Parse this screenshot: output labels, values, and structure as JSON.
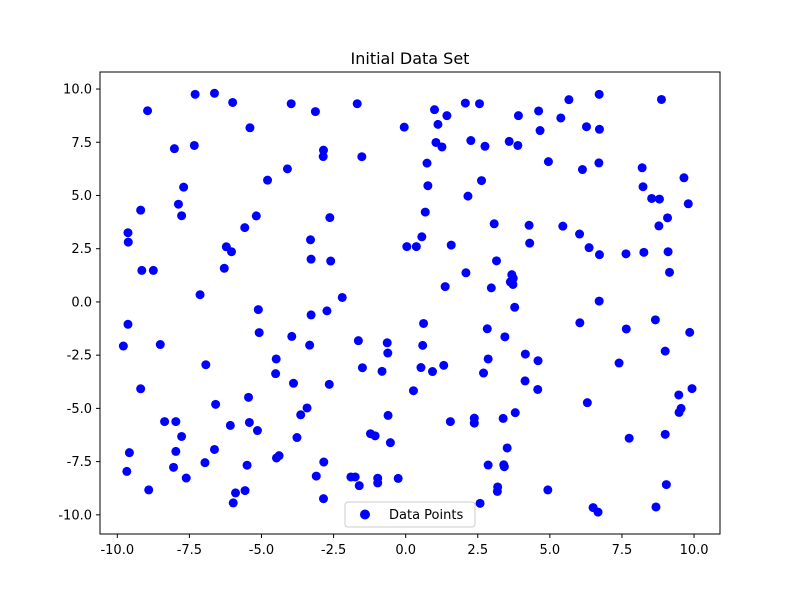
{
  "chart_data": {
    "type": "scatter",
    "title": "Initial Data Set",
    "xlabel": "",
    "ylabel": "",
    "xlim": [
      -10.6,
      10.9
    ],
    "ylim": [
      -10.9,
      10.8
    ],
    "x_ticks": [
      -10.0,
      -7.5,
      -5.0,
      -2.5,
      0.0,
      2.5,
      5.0,
      7.5,
      10.0
    ],
    "y_ticks": [
      -10.0,
      -7.5,
      -5.0,
      -2.5,
      0.0,
      2.5,
      5.0,
      7.5,
      10.0
    ],
    "grid": false,
    "legend_position": "bottom-center",
    "series": [
      {
        "name": "Data Points",
        "color": "#0000ff",
        "points": [
          [
            -9.79,
            -2.07
          ],
          [
            -9.63,
            -1.05
          ],
          [
            -9.63,
            3.25
          ],
          [
            -9.62,
            2.81
          ],
          [
            -9.58,
            -7.08
          ],
          [
            -9.67,
            -7.96
          ],
          [
            -9.19,
            4.31
          ],
          [
            -9.15,
            1.48
          ],
          [
            -9.19,
            -4.08
          ],
          [
            -8.95,
            8.98
          ],
          [
            -8.75,
            1.48
          ],
          [
            -8.91,
            -8.83
          ],
          [
            -8.51,
            -2.0
          ],
          [
            -8.36,
            -5.62
          ],
          [
            -8.02,
            7.2
          ],
          [
            -7.88,
            4.59
          ],
          [
            -8.05,
            -7.77
          ],
          [
            -7.97,
            -5.62
          ],
          [
            -7.97,
            -7.02
          ],
          [
            -7.7,
            5.39
          ],
          [
            -7.77,
            4.05
          ],
          [
            -7.77,
            -6.32
          ],
          [
            -7.61,
            -8.27
          ],
          [
            -7.3,
            9.75
          ],
          [
            -7.33,
            7.35
          ],
          [
            -7.13,
            0.34
          ],
          [
            -6.93,
            -2.95
          ],
          [
            -6.96,
            -7.55
          ],
          [
            -6.63,
            9.8
          ],
          [
            -6.59,
            -4.81
          ],
          [
            -6.63,
            -6.93
          ],
          [
            -6.29,
            1.58
          ],
          [
            -6.22,
            2.59
          ],
          [
            -6.0,
            9.37
          ],
          [
            -6.04,
            2.36
          ],
          [
            -6.08,
            -5.8
          ],
          [
            -5.9,
            -8.97
          ],
          [
            -5.98,
            -9.44
          ],
          [
            -5.58,
            3.49
          ],
          [
            -5.57,
            -8.86
          ],
          [
            -5.4,
            8.18
          ],
          [
            -5.45,
            -4.48
          ],
          [
            -5.42,
            -5.66
          ],
          [
            -5.5,
            -7.67
          ],
          [
            -5.18,
            4.04
          ],
          [
            -5.11,
            -0.36
          ],
          [
            -5.08,
            -1.44
          ],
          [
            -5.14,
            -6.04
          ],
          [
            -4.79,
            5.72
          ],
          [
            -4.49,
            -2.68
          ],
          [
            -4.51,
            -3.37
          ],
          [
            -4.39,
            -7.22
          ],
          [
            -4.48,
            -7.33
          ],
          [
            -4.1,
            6.25
          ],
          [
            -3.97,
            9.31
          ],
          [
            -3.95,
            -1.62
          ],
          [
            -3.89,
            -3.82
          ],
          [
            -3.77,
            -6.37
          ],
          [
            -3.64,
            -5.3
          ],
          [
            -3.42,
            -4.98
          ],
          [
            -3.3,
            2.92
          ],
          [
            -3.28,
            2.01
          ],
          [
            -3.28,
            -0.61
          ],
          [
            -3.33,
            -2.03
          ],
          [
            -3.13,
            8.94
          ],
          [
            -3.1,
            -8.18
          ],
          [
            -2.85,
            7.13
          ],
          [
            -2.86,
            6.83
          ],
          [
            -2.84,
            -7.52
          ],
          [
            -2.85,
            -9.24
          ],
          [
            -2.73,
            -0.42
          ],
          [
            -2.63,
            3.96
          ],
          [
            -2.6,
            1.92
          ],
          [
            -2.65,
            -3.87
          ],
          [
            -2.2,
            0.21
          ],
          [
            -1.9,
            -8.22
          ],
          [
            -1.75,
            -8.22
          ],
          [
            -1.68,
            9.31
          ],
          [
            -1.64,
            -1.82
          ],
          [
            -1.52,
            6.82
          ],
          [
            -1.5,
            -3.09
          ],
          [
            -1.61,
            -8.63
          ],
          [
            -1.22,
            -6.19
          ],
          [
            -1.06,
            -6.29
          ],
          [
            -0.97,
            -8.28
          ],
          [
            -0.97,
            -8.5
          ],
          [
            -0.82,
            -3.26
          ],
          [
            -0.64,
            -1.92
          ],
          [
            -0.62,
            -2.4
          ],
          [
            -0.61,
            -5.33
          ],
          [
            -0.53,
            -6.61
          ],
          [
            -0.26,
            -8.29
          ],
          [
            -0.05,
            8.21
          ],
          [
            0.04,
            2.6
          ],
          [
            0.27,
            -4.17
          ],
          [
            0.37,
            2.6
          ],
          [
            0.56,
            3.06
          ],
          [
            0.59,
            -2.04
          ],
          [
            0.62,
            -1.01
          ],
          [
            0.53,
            -3.08
          ],
          [
            0.68,
            4.22
          ],
          [
            0.74,
            6.52
          ],
          [
            0.77,
            5.46
          ],
          [
            0.93,
            -3.27
          ],
          [
            1.0,
            9.03
          ],
          [
            1.05,
            7.49
          ],
          [
            1.12,
            8.34
          ],
          [
            1.26,
            7.28
          ],
          [
            1.37,
            0.72
          ],
          [
            1.32,
            -2.98
          ],
          [
            1.43,
            8.75
          ],
          [
            1.58,
            2.67
          ],
          [
            1.55,
            -5.62
          ],
          [
            2.07,
            9.34
          ],
          [
            2.09,
            1.37
          ],
          [
            2.16,
            4.97
          ],
          [
            2.26,
            7.58
          ],
          [
            2.38,
            -5.46
          ],
          [
            2.38,
            -5.69
          ],
          [
            2.56,
            9.31
          ],
          [
            2.63,
            5.7
          ],
          [
            2.58,
            -9.46
          ],
          [
            2.7,
            -3.34
          ],
          [
            2.75,
            7.31
          ],
          [
            2.83,
            -1.26
          ],
          [
            2.86,
            -2.68
          ],
          [
            2.86,
            -7.66
          ],
          [
            2.97,
            0.66
          ],
          [
            3.07,
            3.67
          ],
          [
            3.15,
            1.93
          ],
          [
            3.19,
            -8.69
          ],
          [
            3.18,
            -8.9
          ],
          [
            3.38,
            -5.47
          ],
          [
            3.4,
            -7.65
          ],
          [
            3.42,
            -7.74
          ],
          [
            3.44,
            -1.64
          ],
          [
            3.52,
            -6.86
          ],
          [
            3.59,
            7.54
          ],
          [
            3.63,
            0.94
          ],
          [
            3.68,
            1.28
          ],
          [
            3.72,
            0.82
          ],
          [
            3.73,
            1.11
          ],
          [
            3.78,
            -0.25
          ],
          [
            3.8,
            -5.2
          ],
          [
            3.91,
            8.75
          ],
          [
            3.89,
            7.35
          ],
          [
            4.15,
            -2.45
          ],
          [
            4.14,
            -3.71
          ],
          [
            4.28,
            3.6
          ],
          [
            4.3,
            2.76
          ],
          [
            4.61,
            8.97
          ],
          [
            4.66,
            8.05
          ],
          [
            4.59,
            -2.76
          ],
          [
            4.58,
            -4.11
          ],
          [
            4.95,
            6.59
          ],
          [
            4.93,
            -8.83
          ],
          [
            5.38,
            8.64
          ],
          [
            5.45,
            3.56
          ],
          [
            5.66,
            9.5
          ],
          [
            6.03,
            3.19
          ],
          [
            6.13,
            6.22
          ],
          [
            6.04,
            -0.98
          ],
          [
            6.27,
            8.23
          ],
          [
            6.3,
            -4.73
          ],
          [
            6.36,
            2.55
          ],
          [
            6.5,
            -9.66
          ],
          [
            6.67,
            -9.87
          ],
          [
            6.71,
            9.75
          ],
          [
            6.72,
            8.11
          ],
          [
            6.7,
            6.53
          ],
          [
            6.72,
            2.22
          ],
          [
            6.71,
            0.04
          ],
          [
            7.4,
            -2.87
          ],
          [
            7.64,
            2.26
          ],
          [
            7.65,
            -1.27
          ],
          [
            7.75,
            -6.4
          ],
          [
            8.2,
            6.3
          ],
          [
            8.23,
            5.41
          ],
          [
            8.26,
            2.33
          ],
          [
            8.53,
            4.86
          ],
          [
            8.66,
            -0.84
          ],
          [
            8.68,
            -9.63
          ],
          [
            8.78,
            3.57
          ],
          [
            8.8,
            4.83
          ],
          [
            8.87,
            9.51
          ],
          [
            9.0,
            -2.31
          ],
          [
            9.0,
            -6.22
          ],
          [
            9.04,
            -8.58
          ],
          [
            9.08,
            3.95
          ],
          [
            9.1,
            2.36
          ],
          [
            9.15,
            1.39
          ],
          [
            9.47,
            -4.37
          ],
          [
            9.48,
            -5.19
          ],
          [
            9.55,
            -5.0
          ],
          [
            9.65,
            5.83
          ],
          [
            9.8,
            4.61
          ],
          [
            9.85,
            -1.43
          ],
          [
            9.93,
            -4.07
          ]
        ]
      }
    ]
  }
}
